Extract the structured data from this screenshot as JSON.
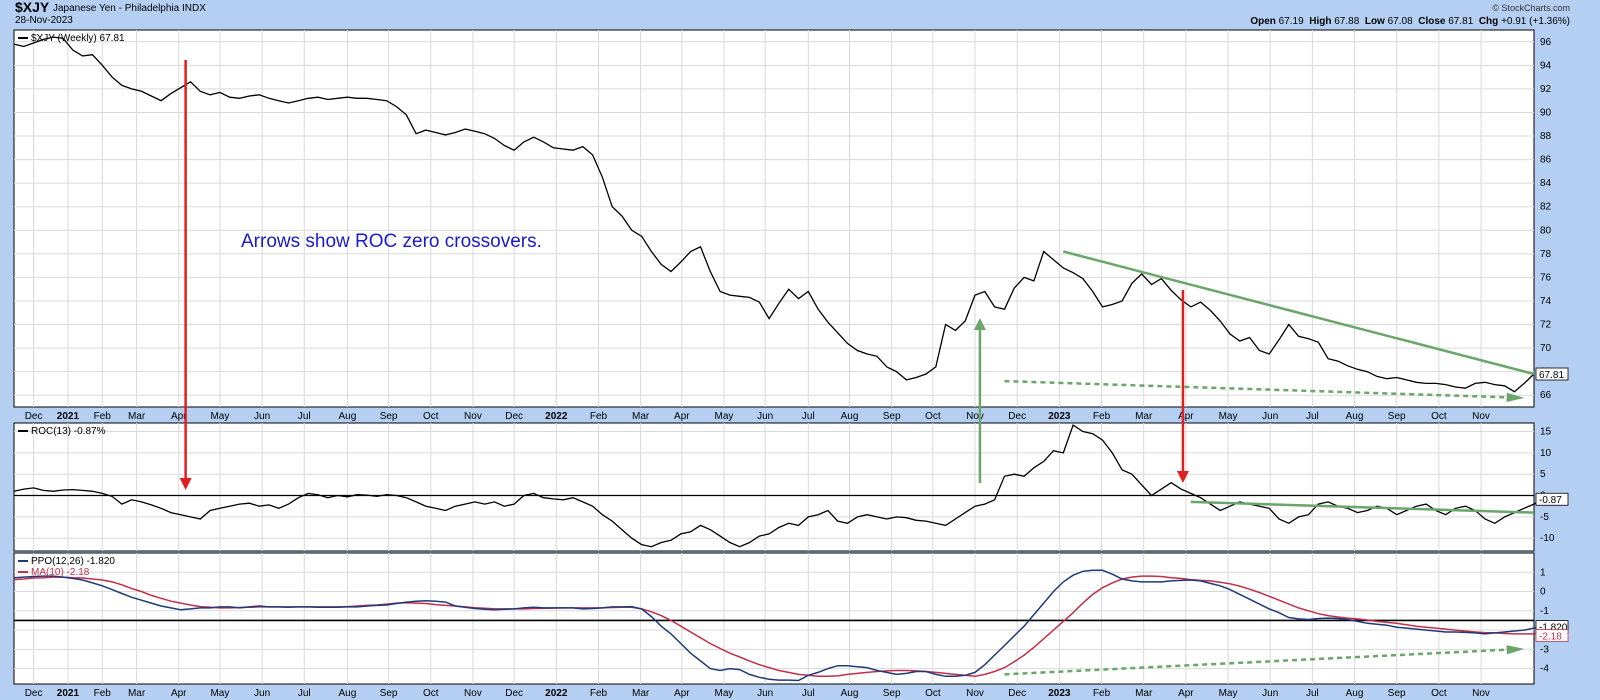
{
  "header": {
    "symbol": "$XJY",
    "name": "Japanese Yen - Philadelphia INDX",
    "date": "28-Nov-2023",
    "open_label": "Open",
    "open": "67.19",
    "high_label": "High",
    "high": "67.88",
    "low_label": "Low",
    "low": "67.08",
    "close_label": "Close",
    "close": "67.81",
    "chg_label": "Chg",
    "chg": "+0.91 (+1.36%)",
    "logo": "© StockCharts.com"
  },
  "annotation": "Arrows show ROC zero crossovers.",
  "colors": {
    "price": "#000000",
    "ppo": "#1f3a78",
    "ma": "#c0304a",
    "green": "#6aa56a",
    "red": "#e02020",
    "annotation": "#1a1ad0"
  },
  "x_axis_labels": [
    "Dec",
    "2021",
    "Feb",
    "Mar",
    "Apr",
    "May",
    "Jun",
    "Jul",
    "Aug",
    "Sep",
    "Oct",
    "Nov",
    "Dec",
    "2022",
    "Feb",
    "Mar",
    "Apr",
    "May",
    "Jun",
    "Jul",
    "Aug",
    "Sep",
    "Oct",
    "Nov",
    "Dec",
    "2023",
    "Feb",
    "Mar",
    "Apr",
    "May",
    "Jun",
    "Jul",
    "Aug",
    "Sep",
    "Oct",
    "Nov"
  ],
  "chart_data": [
    {
      "type": "line",
      "legend": "$XJY (Weekly) 67.81",
      "last_value_label": "67.81",
      "ylim": [
        65,
        97
      ],
      "yticks": [
        66,
        68,
        70,
        72,
        74,
        76,
        78,
        80,
        82,
        84,
        86,
        88,
        90,
        92,
        94,
        96
      ],
      "x_range": [
        0,
        155
      ],
      "series": [
        {
          "values": [
            95.8,
            95.6,
            95.9,
            96.2,
            96.4,
            96.3,
            95.3,
            94.8,
            94.9,
            94.0,
            93.0,
            92.3,
            92.0,
            91.8,
            91.4,
            91.0,
            91.6,
            92.1,
            92.6,
            91.8,
            91.5,
            91.7,
            91.3,
            91.2,
            91.4,
            91.5,
            91.2,
            91.0,
            90.8,
            91.0,
            91.2,
            91.3,
            91.1,
            91.2,
            91.3,
            91.2,
            91.2,
            91.1,
            91.0,
            90.5,
            89.8,
            88.2,
            88.5,
            88.3,
            88.1,
            88.3,
            88.6,
            88.4,
            88.2,
            87.8,
            87.2,
            86.8,
            87.5,
            87.9,
            87.5,
            87.0,
            86.9,
            86.8,
            87.1,
            86.4,
            84.5,
            82.0,
            81.2,
            80.0,
            79.5,
            78.2,
            77.1,
            76.5,
            77.3,
            78.2,
            78.6,
            76.5,
            74.8,
            74.5,
            74.4,
            74.3,
            73.9,
            72.5,
            73.8,
            75.0,
            74.2,
            74.8,
            73.3,
            72.2,
            71.3,
            70.4,
            69.8,
            69.5,
            69.3,
            68.4,
            68.0,
            67.3,
            67.5,
            67.8,
            68.4,
            72.0,
            71.5,
            72.3,
            74.5,
            74.8,
            73.5,
            73.3,
            75.1,
            76.0,
            75.7,
            78.2,
            77.5,
            76.8,
            76.4,
            75.9,
            74.8,
            73.5,
            73.7,
            74.0,
            75.5,
            76.3,
            75.4,
            75.9,
            74.9,
            74.1,
            73.5,
            73.9,
            73.2,
            72.3,
            71.2,
            70.6,
            70.9,
            69.8,
            69.5,
            70.7,
            72.0,
            71.0,
            70.8,
            70.5,
            69.1,
            68.9,
            68.5,
            68.2,
            68.0,
            67.6,
            67.4,
            67.5,
            67.3,
            67.1,
            67.0,
            67.0,
            66.9,
            66.7,
            66.6,
            67.0,
            67.1,
            66.9,
            66.8,
            66.3,
            67.0,
            67.8
          ]
        }
      ],
      "trendlines": [
        {
          "color": "green",
          "style": "solid",
          "from": [
            107,
            78.2
          ],
          "to": [
            155,
            67.8
          ]
        },
        {
          "color": "green",
          "style": "dashed",
          "from": [
            101,
            67.2
          ],
          "to": [
            153,
            65.8
          ]
        }
      ]
    },
    {
      "type": "line",
      "legend": "ROC(13) -0.87%",
      "last_value_label": "-0.87",
      "ylim": [
        -13,
        17
      ],
      "yticks": [
        -10,
        -5,
        0,
        5,
        10,
        15
      ],
      "zero_line": 0,
      "series": [
        {
          "values": [
            1.0,
            1.5,
            1.8,
            1.2,
            1.0,
            1.3,
            1.4,
            1.2,
            1.0,
            0.5,
            -0.2,
            -2.0,
            -1.0,
            -1.5,
            -2.2,
            -3.0,
            -4.0,
            -4.5,
            -5.0,
            -5.5,
            -3.5,
            -3.0,
            -2.5,
            -2.0,
            -1.8,
            -2.5,
            -2.2,
            -3.0,
            -2.0,
            -0.5,
            0.5,
            0.2,
            -0.5,
            0.0,
            -0.3,
            0.2,
            0.1,
            -0.2,
            0.2,
            0.0,
            -0.5,
            -1.5,
            -2.5,
            -3.0,
            -3.5,
            -2.5,
            -2.0,
            -1.5,
            -2.0,
            -1.5,
            -2.5,
            -2.0,
            0.0,
            0.5,
            -0.5,
            -0.8,
            -1.0,
            -0.5,
            -1.5,
            -2.5,
            -4.5,
            -6.0,
            -8.0,
            -10.0,
            -11.5,
            -12.0,
            -11.0,
            -10.5,
            -9.0,
            -8.5,
            -7.0,
            -8.0,
            -9.5,
            -11.0,
            -12.0,
            -11.0,
            -9.5,
            -9.0,
            -7.5,
            -6.5,
            -7.0,
            -5.0,
            -4.5,
            -3.5,
            -6.0,
            -6.5,
            -5.0,
            -4.5,
            -5.0,
            -5.5,
            -5.0,
            -5.2,
            -5.8,
            -6.0,
            -6.5,
            -7.0,
            -5.5,
            -4.0,
            -2.5,
            -2.0,
            -1.0,
            4.5,
            5.0,
            4.5,
            6.5,
            8.0,
            10.5,
            10.0,
            16.5,
            15.0,
            14.5,
            13.0,
            10.0,
            6.0,
            5.0,
            2.5,
            0.0,
            1.5,
            3.0,
            1.5,
            0.5,
            -0.5,
            -2.0,
            -3.5,
            -2.5,
            -1.5,
            -2.0,
            -2.5,
            -3.0,
            -5.5,
            -6.5,
            -5.0,
            -4.5,
            -2.0,
            -1.5,
            -2.5,
            -3.0,
            -4.0,
            -3.5,
            -2.5,
            -3.0,
            -4.5,
            -3.5,
            -2.5,
            -2.0,
            -3.5,
            -4.5,
            -3.0,
            -2.5,
            -3.5,
            -5.5,
            -6.5,
            -5.0,
            -4.0,
            -3.0,
            -2.0,
            -0.87
          ]
        }
      ],
      "trendlines": [
        {
          "color": "green",
          "style": "solid",
          "from": [
            120,
            -1.5
          ],
          "to": [
            155,
            -4.0
          ]
        }
      ]
    },
    {
      "type": "line",
      "legend": "PPO(12,26) -1.820",
      "legend_ma": "MA(10) -2.18",
      "last_value_label": "-1.820",
      "last_ma_label": "-2.18",
      "ylim": [
        -4.8,
        2.0
      ],
      "yticks": [
        -4,
        -3,
        -2,
        -1,
        0,
        1
      ],
      "signal_line": -1.5,
      "series": [
        {
          "name": "PPO(12,26)",
          "values": [
            0.72,
            0.75,
            0.78,
            0.8,
            0.8,
            0.75,
            0.68,
            0.6,
            0.45,
            0.3,
            0.1,
            -0.1,
            -0.3,
            -0.45,
            -0.6,
            -0.75,
            -0.85,
            -0.95,
            -0.9,
            -0.85,
            -0.85,
            -0.8,
            -0.8,
            -0.85,
            -0.8,
            -0.75,
            -0.8,
            -0.8,
            -0.82,
            -0.8,
            -0.8,
            -0.82,
            -0.82,
            -0.82,
            -0.8,
            -0.8,
            -0.75,
            -0.72,
            -0.7,
            -0.62,
            -0.55,
            -0.5,
            -0.48,
            -0.5,
            -0.55,
            -0.75,
            -0.82,
            -0.88,
            -0.92,
            -0.95,
            -0.92,
            -0.9,
            -0.85,
            -0.82,
            -0.85,
            -0.85,
            -0.85,
            -0.85,
            -0.9,
            -0.88,
            -0.85,
            -0.8,
            -0.8,
            -0.78,
            -0.9,
            -1.3,
            -1.8,
            -2.2,
            -2.7,
            -3.2,
            -3.6,
            -4.0,
            -4.1,
            -4.0,
            -4.05,
            -4.3,
            -4.45,
            -4.55,
            -4.6,
            -4.6,
            -4.62,
            -4.35,
            -4.2,
            -4.0,
            -3.85,
            -3.85,
            -3.9,
            -3.95,
            -4.1,
            -4.2,
            -4.3,
            -4.25,
            -4.15,
            -4.15,
            -4.3,
            -4.4,
            -4.4,
            -4.35,
            -4.2,
            -3.8,
            -3.3,
            -2.8,
            -2.3,
            -1.8,
            -1.2,
            -0.6,
            0.0,
            0.5,
            0.85,
            1.05,
            1.1,
            1.1,
            0.9,
            0.65,
            0.55,
            0.5,
            0.5,
            0.5,
            0.55,
            0.58,
            0.6,
            0.55,
            0.42,
            0.3,
            0.1,
            -0.15,
            -0.4,
            -0.65,
            -0.9,
            -1.1,
            -1.35,
            -1.42,
            -1.45,
            -1.4,
            -1.38,
            -1.4,
            -1.45,
            -1.55,
            -1.65,
            -1.7,
            -1.75,
            -1.85,
            -1.9,
            -1.95,
            -2.0,
            -2.05,
            -2.1,
            -2.1,
            -2.12,
            -2.15,
            -2.2,
            -2.15,
            -2.1,
            -2.05,
            -2.0,
            -1.9,
            -1.82
          ]
        },
        {
          "name": "MA(10)",
          "values": [
            0.62,
            0.65,
            0.7,
            0.72,
            0.75,
            0.75,
            0.72,
            0.7,
            0.65,
            0.6,
            0.5,
            0.35,
            0.15,
            0.0,
            -0.2,
            -0.35,
            -0.5,
            -0.6,
            -0.7,
            -0.78,
            -0.82,
            -0.85,
            -0.85,
            -0.83,
            -0.82,
            -0.8,
            -0.8,
            -0.8,
            -0.8,
            -0.8,
            -0.8,
            -0.8,
            -0.8,
            -0.8,
            -0.78,
            -0.75,
            -0.72,
            -0.7,
            -0.65,
            -0.6,
            -0.58,
            -0.6,
            -0.62,
            -0.68,
            -0.72,
            -0.75,
            -0.8,
            -0.84,
            -0.87,
            -0.9,
            -0.9,
            -0.9,
            -0.9,
            -0.88,
            -0.87,
            -0.86,
            -0.85,
            -0.85,
            -0.85,
            -0.85,
            -0.85,
            -0.83,
            -0.82,
            -0.82,
            -0.9,
            -1.05,
            -1.25,
            -1.5,
            -1.8,
            -2.1,
            -2.4,
            -2.7,
            -2.95,
            -3.2,
            -3.4,
            -3.6,
            -3.8,
            -3.95,
            -4.1,
            -4.2,
            -4.3,
            -4.35,
            -4.4,
            -4.4,
            -4.38,
            -4.3,
            -4.25,
            -4.2,
            -4.15,
            -4.12,
            -4.1,
            -4.1,
            -4.12,
            -4.15,
            -4.2,
            -4.25,
            -4.3,
            -4.35,
            -4.4,
            -4.3,
            -4.15,
            -3.95,
            -3.65,
            -3.3,
            -2.9,
            -2.45,
            -2.0,
            -1.55,
            -1.1,
            -0.6,
            -0.15,
            0.2,
            0.45,
            0.65,
            0.75,
            0.8,
            0.8,
            0.78,
            0.72,
            0.68,
            0.62,
            0.58,
            0.55,
            0.48,
            0.4,
            0.28,
            0.12,
            -0.05,
            -0.25,
            -0.45,
            -0.65,
            -0.85,
            -1.0,
            -1.15,
            -1.25,
            -1.32,
            -1.38,
            -1.42,
            -1.48,
            -1.55,
            -1.6,
            -1.65,
            -1.72,
            -1.8,
            -1.85,
            -1.9,
            -1.95,
            -2.0,
            -2.05,
            -2.1,
            -2.13,
            -2.15,
            -2.18,
            -2.2,
            -2.2,
            -2.2,
            -2.18
          ]
        }
      ],
      "trendlines": [
        {
          "color": "green",
          "style": "dashed",
          "from": [
            101,
            -4.3
          ],
          "to": [
            153,
            -3.0
          ]
        }
      ]
    }
  ]
}
